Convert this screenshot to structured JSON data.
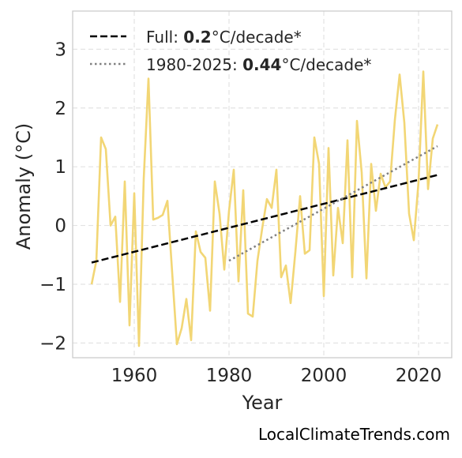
{
  "chart_data": {
    "type": "line",
    "xlabel": "Year",
    "ylabel": "Anomaly (°C)",
    "xlim": [
      1947,
      2027
    ],
    "ylim": [
      -2.25,
      3.65
    ],
    "xticks": [
      1960,
      1980,
      2000,
      2020
    ],
    "yticks": [
      -2,
      -1,
      0,
      1,
      2,
      3
    ],
    "ytick_labels": [
      "−2",
      "−1",
      "0",
      "1",
      "2",
      "3"
    ],
    "grid": true,
    "legend_position": "top-left",
    "series": [
      {
        "style": "solid",
        "color": "#f2d675",
        "x": [
          1951,
          1952,
          1953,
          1954,
          1955,
          1956,
          1957,
          1958,
          1959,
          1960,
          1961,
          1962,
          1963,
          1964,
          1965,
          1966,
          1967,
          1968,
          1969,
          1970,
          1971,
          1972,
          1973,
          1974,
          1975,
          1976,
          1977,
          1978,
          1979,
          1980,
          1981,
          1982,
          1983,
          1984,
          1985,
          1986,
          1987,
          1988,
          1989,
          1990,
          1991,
          1992,
          1993,
          1994,
          1995,
          1996,
          1997,
          1998,
          1999,
          2000,
          2001,
          2002,
          2003,
          2004,
          2005,
          2006,
          2007,
          2008,
          2009,
          2010,
          2011,
          2012,
          2013,
          2014,
          2015,
          2016,
          2017,
          2018,
          2019,
          2020,
          2021,
          2022,
          2023,
          2024
        ],
        "y": [
          -1.0,
          -0.6,
          1.5,
          1.3,
          0.0,
          0.15,
          -1.3,
          0.75,
          -1.7,
          0.55,
          -2.05,
          0.8,
          2.5,
          0.1,
          0.13,
          0.18,
          0.42,
          -0.8,
          -2.02,
          -1.75,
          -1.25,
          -1.95,
          -0.1,
          -0.45,
          -0.55,
          -1.45,
          0.75,
          0.2,
          -0.75,
          0.25,
          0.95,
          -0.95,
          0.6,
          -1.5,
          -1.55,
          -0.6,
          -0.05,
          0.45,
          0.3,
          0.95,
          -0.88,
          -0.68,
          -1.32,
          -0.45,
          0.5,
          -0.48,
          -0.42,
          1.5,
          1.05,
          -1.2,
          1.32,
          -0.85,
          0.3,
          -0.3,
          1.45,
          -0.88,
          1.78,
          0.9,
          -0.9,
          1.05,
          0.25,
          0.88,
          0.65,
          0.75,
          1.8,
          2.57,
          1.75,
          0.2,
          -0.25,
          0.75,
          2.62,
          0.62,
          1.48,
          1.72
        ]
      },
      {
        "name": "Full: ",
        "rate": "0.2",
        "unit": "°C/decade*",
        "style": "dashed",
        "color": "#000000",
        "x": [
          1951,
          2024
        ],
        "y": [
          -0.63,
          0.86
        ]
      },
      {
        "name": "1980-2025: ",
        "rate": "0.44",
        "unit": "°C/decade*",
        "style": "dotted",
        "color": "#808080",
        "x": [
          1980,
          2024
        ],
        "y": [
          -0.6,
          1.35
        ]
      }
    ]
  },
  "footer": {
    "credit": "LocalClimateTrends.com"
  }
}
